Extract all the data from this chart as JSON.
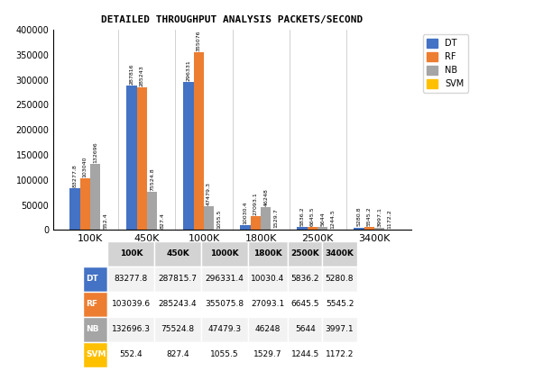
{
  "title": "DETAILED THROUGHPUT ANALYSIS PACKETS/SECOND",
  "categories": [
    "100K",
    "450K",
    "1000K",
    "1800K",
    "2500K",
    "3400K"
  ],
  "series": {
    "DT": [
      83277.8,
      287815.7,
      296331.4,
      10030.4,
      5836.2,
      5280.8
    ],
    "RF": [
      103039.6,
      285243.4,
      355075.8,
      27093.1,
      6645.5,
      5545.2
    ],
    "NB": [
      132696.3,
      75524.8,
      47479.3,
      46248,
      5644,
      3997.1
    ],
    "SVM": [
      552.4,
      827.4,
      1055.5,
      1529.7,
      1244.5,
      1172.2
    ]
  },
  "colors": {
    "DT": "#4472C4",
    "RF": "#ED7D31",
    "NB": "#A5A5A5",
    "SVM": "#FFC000"
  },
  "ylim": [
    0,
    400000
  ],
  "yticks": [
    0,
    50000,
    100000,
    150000,
    200000,
    250000,
    300000,
    350000,
    400000
  ],
  "ytick_labels": [
    "0",
    "50000",
    "100000",
    "150000",
    "200000",
    "250000",
    "300000",
    "350000",
    "400000"
  ],
  "bar_width": 0.18,
  "table_rows": [
    "DT",
    "RF",
    "NB",
    "SVM"
  ],
  "table_colors": [
    "#4472C4",
    "#ED7D31",
    "#A5A5A5",
    "#FFC000"
  ],
  "table_data": [
    [
      83277.8,
      287815.7,
      296331.4,
      10030.4,
      5836.2,
      5280.8
    ],
    [
      103039.6,
      285243.4,
      355075.8,
      27093.1,
      6645.5,
      5545.2
    ],
    [
      132696.3,
      75524.8,
      47479.3,
      46248,
      5644,
      3997.1
    ],
    [
      552.4,
      827.4,
      1055.5,
      1529.7,
      1244.5,
      1172.2
    ]
  ]
}
